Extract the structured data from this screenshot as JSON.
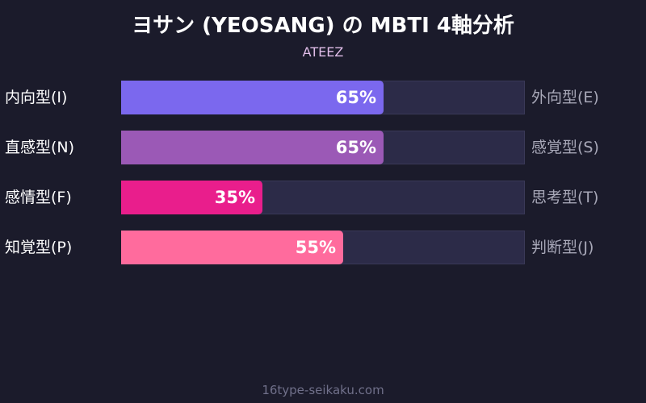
{
  "chart_data": {
    "type": "bar",
    "title": "ヨサン (YEOSANG) の MBTI 4軸分析",
    "subtitle": "ATEEZ",
    "xlim": [
      0,
      100
    ],
    "rows": [
      {
        "left_label": "内向型(I)",
        "right_label": "外向型(E)",
        "value": 65,
        "value_label": "65%",
        "color": "#7b68ee"
      },
      {
        "left_label": "直感型(N)",
        "right_label": "感覚型(S)",
        "value": 65,
        "value_label": "65%",
        "color": "#9b59b6"
      },
      {
        "left_label": "感情型(F)",
        "right_label": "思考型(T)",
        "value": 35,
        "value_label": "35%",
        "color": "#e91e8c"
      },
      {
        "left_label": "知覚型(P)",
        "right_label": "判断型(J)",
        "value": 55,
        "value_label": "55%",
        "color": "#ff6b9d"
      }
    ]
  },
  "footer": "16type-seikaku.com"
}
